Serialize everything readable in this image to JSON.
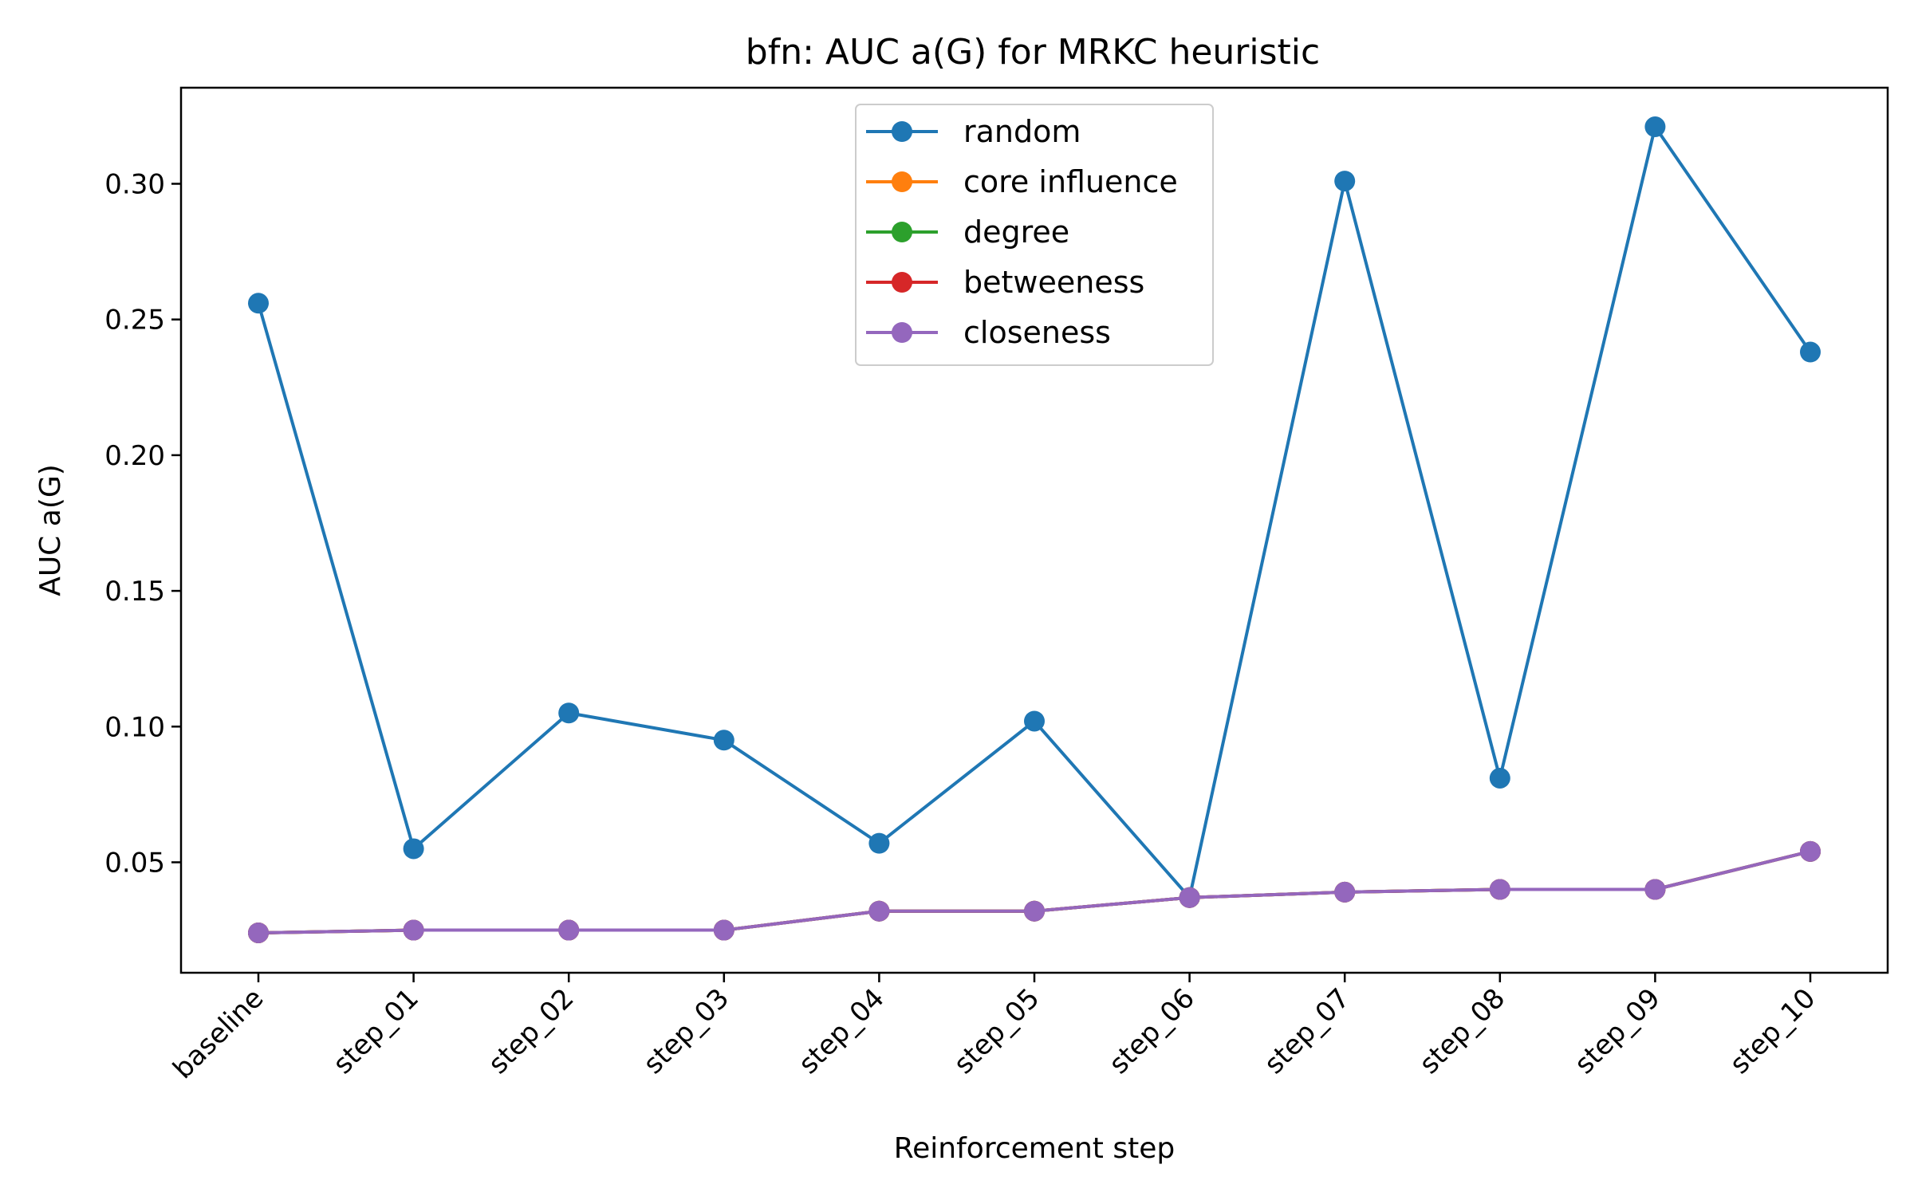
{
  "chart_data": {
    "type": "line",
    "title": "bfn: AUC a(G) for MRKC heuristic",
    "xlabel": "Reinforcement step",
    "ylabel": "AUC a(G)",
    "categories": [
      "baseline",
      "step_01",
      "step_02",
      "step_03",
      "step_04",
      "step_05",
      "step_06",
      "step_07",
      "step_08",
      "step_09",
      "step_10"
    ],
    "ylim": [
      0.0093,
      0.3354
    ],
    "yticks": [
      0.05,
      0.1,
      0.15,
      0.2,
      0.25,
      0.3
    ],
    "ytick_labels": [
      "0.05",
      "0.10",
      "0.15",
      "0.20",
      "0.25",
      "0.30"
    ],
    "grid": false,
    "legend_position": "upper center",
    "series": [
      {
        "name": "random",
        "color": "#1f77b4",
        "values": [
          0.256,
          0.055,
          0.105,
          0.095,
          0.057,
          0.102,
          0.037,
          0.301,
          0.081,
          0.321,
          0.238
        ]
      },
      {
        "name": "core influence",
        "color": "#ff7f0e",
        "values": [
          0.024,
          0.025,
          0.025,
          0.025,
          0.032,
          0.032,
          0.037,
          0.039,
          0.04,
          0.04,
          0.054
        ]
      },
      {
        "name": "degree",
        "color": "#2ca02c",
        "values": [
          0.024,
          0.025,
          0.025,
          0.025,
          0.032,
          0.032,
          0.037,
          0.039,
          0.04,
          0.04,
          0.054
        ]
      },
      {
        "name": "betweeness",
        "color": "#d62728",
        "values": [
          0.024,
          0.025,
          0.025,
          0.025,
          0.032,
          0.032,
          0.037,
          0.039,
          0.04,
          0.04,
          0.054
        ]
      },
      {
        "name": "closeness",
        "color": "#9467bd",
        "values": [
          0.024,
          0.025,
          0.025,
          0.025,
          0.032,
          0.032,
          0.037,
          0.039,
          0.04,
          0.04,
          0.054
        ]
      }
    ]
  }
}
